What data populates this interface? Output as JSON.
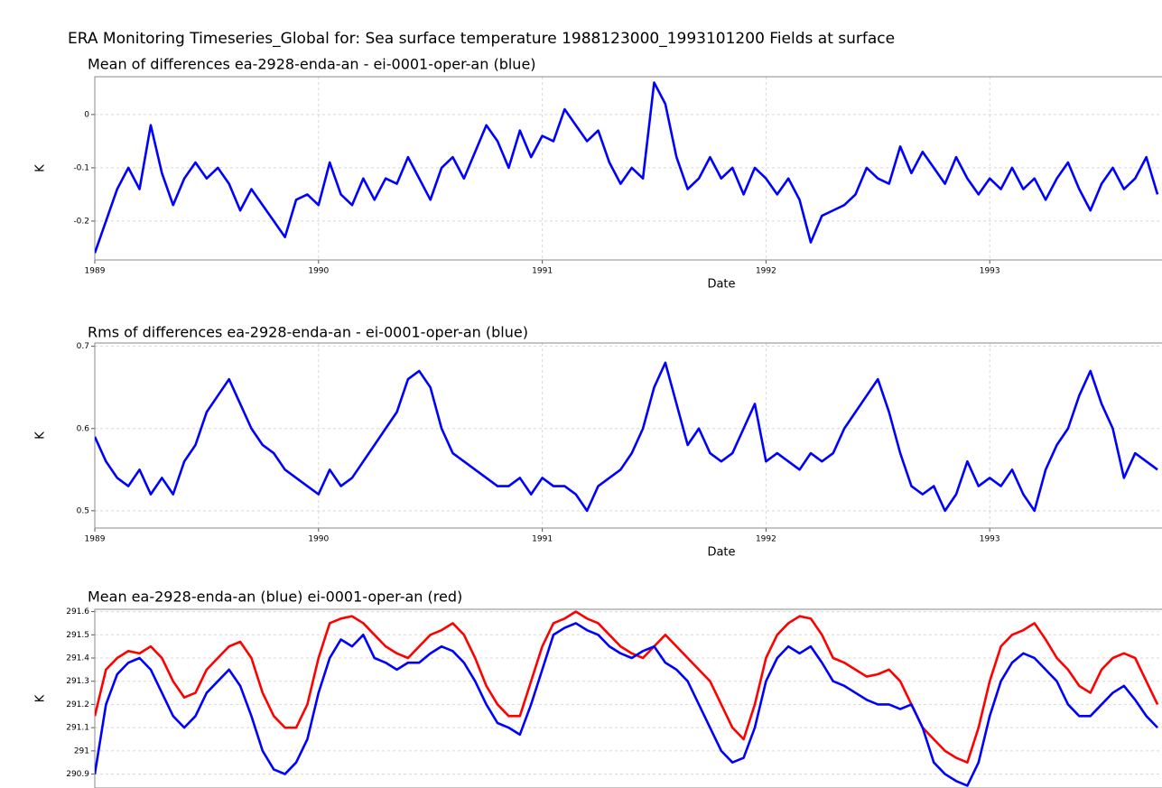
{
  "title": "ERA Monitoring Timeseries_Global for: Sea surface temperature 1988123000_1993101200 Fields at surface",
  "chart_data": [
    {
      "type": "line",
      "title": "Mean of differences ea-2928-enda-an - ei-0001-oper-an (blue)",
      "xlabel": "Date",
      "ylabel": "K",
      "x": [
        1989,
        1989.05,
        1989.1,
        1989.15,
        1989.2,
        1989.25,
        1989.3,
        1989.35,
        1989.4,
        1989.45,
        1989.5,
        1989.55,
        1989.6,
        1989.65,
        1989.7,
        1989.75,
        1989.8,
        1989.85,
        1989.9,
        1989.95,
        1990,
        1990.05,
        1990.1,
        1990.15,
        1990.2,
        1990.25,
        1990.3,
        1990.35,
        1990.4,
        1990.45,
        1990.5,
        1990.55,
        1990.6,
        1990.65,
        1990.7,
        1990.75,
        1990.8,
        1990.85,
        1990.9,
        1990.95,
        1991,
        1991.05,
        1991.1,
        1991.15,
        1991.2,
        1991.25,
        1991.3,
        1991.35,
        1991.4,
        1991.45,
        1991.5,
        1991.55,
        1991.6,
        1991.65,
        1991.7,
        1991.75,
        1991.8,
        1991.85,
        1991.9,
        1991.95,
        1992,
        1992.05,
        1992.1,
        1992.15,
        1992.2,
        1992.25,
        1992.3,
        1992.35,
        1992.4,
        1992.45,
        1992.5,
        1992.55,
        1992.6,
        1992.65,
        1992.7,
        1992.75,
        1992.8,
        1992.85,
        1992.9,
        1992.95,
        1993,
        1993.05,
        1993.1,
        1993.15,
        1993.2,
        1993.25,
        1993.3,
        1993.35,
        1993.4,
        1993.45,
        1993.5,
        1993.55,
        1993.6,
        1993.65,
        1993.7,
        1993.75
      ],
      "values": [
        -0.26,
        -0.2,
        -0.14,
        -0.1,
        -0.14,
        -0.02,
        -0.11,
        -0.17,
        -0.12,
        -0.09,
        -0.12,
        -0.1,
        -0.13,
        -0.18,
        -0.14,
        -0.17,
        -0.2,
        -0.23,
        -0.16,
        -0.15,
        -0.17,
        -0.09,
        -0.15,
        -0.17,
        -0.12,
        -0.16,
        -0.12,
        -0.13,
        -0.08,
        -0.12,
        -0.16,
        -0.1,
        -0.08,
        -0.12,
        -0.07,
        -0.02,
        -0.05,
        -0.1,
        -0.03,
        -0.08,
        -0.04,
        -0.05,
        0.01,
        -0.02,
        -0.05,
        -0.03,
        -0.09,
        -0.13,
        -0.1,
        -0.12,
        0.06,
        0.02,
        -0.08,
        -0.14,
        -0.12,
        -0.08,
        -0.12,
        -0.1,
        -0.15,
        -0.1,
        -0.12,
        -0.15,
        -0.12,
        -0.16,
        -0.24,
        -0.19,
        -0.18,
        -0.17,
        -0.15,
        -0.1,
        -0.12,
        -0.13,
        -0.06,
        -0.11,
        -0.07,
        -0.1,
        -0.13,
        -0.08,
        -0.12,
        -0.15,
        -0.12,
        -0.14,
        -0.1,
        -0.14,
        -0.12,
        -0.16,
        -0.12,
        -0.09,
        -0.14,
        -0.18,
        -0.13,
        -0.1,
        -0.14,
        -0.12,
        -0.08,
        -0.15
      ],
      "color": "#0000ff",
      "xlim": [
        1989,
        1993.77
      ],
      "xticks": [
        1989,
        1990,
        1991,
        1992,
        1993
      ],
      "ylim": [
        -0.273,
        0.071
      ],
      "yticks": [
        0,
        -0.1,
        -0.2
      ],
      "grid": true
    },
    {
      "type": "line",
      "title": "Rms of differences ea-2928-enda-an - ei-0001-oper-an (blue)",
      "xlabel": "Date",
      "ylabel": "K",
      "x": [
        1989,
        1989.05,
        1989.1,
        1989.15,
        1989.2,
        1989.25,
        1989.3,
        1989.35,
        1989.4,
        1989.45,
        1989.5,
        1989.55,
        1989.6,
        1989.65,
        1989.7,
        1989.75,
        1989.8,
        1989.85,
        1989.9,
        1989.95,
        1990,
        1990.05,
        1990.1,
        1990.15,
        1990.2,
        1990.25,
        1990.3,
        1990.35,
        1990.4,
        1990.45,
        1990.5,
        1990.55,
        1990.6,
        1990.65,
        1990.7,
        1990.75,
        1990.8,
        1990.85,
        1990.9,
        1990.95,
        1991,
        1991.05,
        1991.1,
        1991.15,
        1991.2,
        1991.25,
        1991.3,
        1991.35,
        1991.4,
        1991.45,
        1991.5,
        1991.55,
        1991.6,
        1991.65,
        1991.7,
        1991.75,
        1991.8,
        1991.85,
        1991.9,
        1991.95,
        1992,
        1992.05,
        1992.1,
        1992.15,
        1992.2,
        1992.25,
        1992.3,
        1992.35,
        1992.4,
        1992.45,
        1992.5,
        1992.55,
        1992.6,
        1992.65,
        1992.7,
        1992.75,
        1992.8,
        1992.85,
        1992.9,
        1992.95,
        1993,
        1993.05,
        1993.1,
        1993.15,
        1993.2,
        1993.25,
        1993.3,
        1993.35,
        1993.4,
        1993.45,
        1993.5,
        1993.55,
        1993.6,
        1993.65,
        1993.7,
        1993.75
      ],
      "values": [
        0.59,
        0.56,
        0.54,
        0.53,
        0.55,
        0.52,
        0.54,
        0.52,
        0.56,
        0.58,
        0.62,
        0.64,
        0.66,
        0.63,
        0.6,
        0.58,
        0.57,
        0.55,
        0.54,
        0.53,
        0.52,
        0.55,
        0.53,
        0.54,
        0.56,
        0.58,
        0.6,
        0.62,
        0.66,
        0.67,
        0.65,
        0.6,
        0.57,
        0.56,
        0.55,
        0.54,
        0.53,
        0.53,
        0.54,
        0.52,
        0.54,
        0.53,
        0.53,
        0.52,
        0.5,
        0.53,
        0.54,
        0.55,
        0.57,
        0.6,
        0.65,
        0.68,
        0.63,
        0.58,
        0.6,
        0.57,
        0.56,
        0.57,
        0.6,
        0.63,
        0.56,
        0.57,
        0.56,
        0.55,
        0.57,
        0.56,
        0.57,
        0.6,
        0.62,
        0.64,
        0.66,
        0.62,
        0.57,
        0.53,
        0.52,
        0.53,
        0.5,
        0.52,
        0.56,
        0.53,
        0.54,
        0.53,
        0.55,
        0.52,
        0.5,
        0.55,
        0.58,
        0.6,
        0.64,
        0.67,
        0.63,
        0.6,
        0.54,
        0.57,
        0.56,
        0.55
      ],
      "color": "#0000ff",
      "xlim": [
        1989,
        1993.77
      ],
      "xticks": [
        1989,
        1990,
        1991,
        1992,
        1993
      ],
      "ylim": [
        0.479,
        0.704
      ],
      "yticks": [
        0.7,
        0.6,
        0.5
      ],
      "grid": true
    },
    {
      "type": "line",
      "title": "Mean ea-2928-enda-an (blue) ei-0001-oper-an (red)",
      "ylabel": "K",
      "x": [
        1989,
        1989.05,
        1989.1,
        1989.15,
        1989.2,
        1989.25,
        1989.3,
        1989.35,
        1989.4,
        1989.45,
        1989.5,
        1989.55,
        1989.6,
        1989.65,
        1989.7,
        1989.75,
        1989.8,
        1989.85,
        1989.9,
        1989.95,
        1990,
        1990.05,
        1990.1,
        1990.15,
        1990.2,
        1990.25,
        1990.3,
        1990.35,
        1990.4,
        1990.45,
        1990.5,
        1990.55,
        1990.6,
        1990.65,
        1990.7,
        1990.75,
        1990.8,
        1990.85,
        1990.9,
        1990.95,
        1991,
        1991.05,
        1991.1,
        1991.15,
        1991.2,
        1991.25,
        1991.3,
        1991.35,
        1991.4,
        1991.45,
        1991.5,
        1991.55,
        1991.6,
        1991.65,
        1991.7,
        1991.75,
        1991.8,
        1991.85,
        1991.9,
        1991.95,
        1992,
        1992.05,
        1992.1,
        1992.15,
        1992.2,
        1992.25,
        1992.3,
        1992.35,
        1992.4,
        1992.45,
        1992.5,
        1992.55,
        1992.6,
        1992.65,
        1992.7,
        1992.75,
        1992.8,
        1992.85,
        1992.9,
        1992.95,
        1993,
        1993.05,
        1993.1,
        1993.15,
        1993.2,
        1993.25,
        1993.3,
        1993.35,
        1993.4,
        1993.45,
        1993.5,
        1993.55,
        1993.6,
        1993.65,
        1993.7,
        1993.75
      ],
      "series": [
        {
          "color": "#ff0000",
          "values": [
            291.15,
            291.35,
            291.4,
            291.43,
            291.42,
            291.45,
            291.4,
            291.3,
            291.23,
            291.25,
            291.35,
            291.4,
            291.45,
            291.47,
            291.4,
            291.25,
            291.15,
            291.1,
            291.1,
            291.2,
            291.4,
            291.55,
            291.57,
            291.58,
            291.55,
            291.5,
            291.45,
            291.42,
            291.4,
            291.45,
            291.5,
            291.52,
            291.55,
            291.5,
            291.4,
            291.28,
            291.2,
            291.15,
            291.15,
            291.3,
            291.45,
            291.55,
            291.57,
            291.6,
            291.57,
            291.55,
            291.5,
            291.45,
            291.42,
            291.4,
            291.45,
            291.5,
            291.45,
            291.4,
            291.35,
            291.3,
            291.2,
            291.1,
            291.05,
            291.2,
            291.4,
            291.5,
            291.55,
            291.58,
            291.57,
            291.5,
            291.4,
            291.38,
            291.35,
            291.32,
            291.33,
            291.35,
            291.3,
            291.2,
            291.1,
            291.05,
            291.0,
            290.97,
            290.95,
            291.1,
            291.3,
            291.45,
            291.5,
            291.52,
            291.55,
            291.48,
            291.4,
            291.35,
            291.28,
            291.25,
            291.35,
            291.4,
            291.42,
            291.4,
            291.3,
            291.2
          ]
        },
        {
          "color": "#0000ff",
          "values": [
            290.9,
            291.2,
            291.33,
            291.38,
            291.4,
            291.35,
            291.25,
            291.15,
            291.1,
            291.15,
            291.25,
            291.3,
            291.35,
            291.28,
            291.15,
            291.0,
            290.92,
            290.9,
            290.95,
            291.05,
            291.25,
            291.4,
            291.48,
            291.45,
            291.5,
            291.4,
            291.38,
            291.35,
            291.38,
            291.38,
            291.42,
            291.45,
            291.43,
            291.38,
            291.3,
            291.2,
            291.12,
            291.1,
            291.07,
            291.2,
            291.35,
            291.5,
            291.53,
            291.55,
            291.52,
            291.5,
            291.45,
            291.42,
            291.4,
            291.43,
            291.45,
            291.38,
            291.35,
            291.3,
            291.2,
            291.1,
            291.0,
            290.95,
            290.97,
            291.1,
            291.3,
            291.4,
            291.45,
            291.42,
            291.45,
            291.38,
            291.3,
            291.28,
            291.25,
            291.22,
            291.2,
            291.2,
            291.18,
            291.2,
            291.1,
            290.95,
            290.9,
            290.87,
            290.85,
            290.95,
            291.15,
            291.3,
            291.38,
            291.42,
            291.4,
            291.35,
            291.3,
            291.2,
            291.15,
            291.15,
            291.2,
            291.25,
            291.28,
            291.22,
            291.15,
            291.1
          ]
        }
      ],
      "xlim": [
        1989,
        1993.77
      ],
      "ylim": [
        290.84,
        291.61
      ],
      "yticks": [
        291.6,
        291.5,
        291.4,
        291.3,
        291.2,
        291.1,
        291,
        290.9
      ],
      "grid": true
    }
  ]
}
